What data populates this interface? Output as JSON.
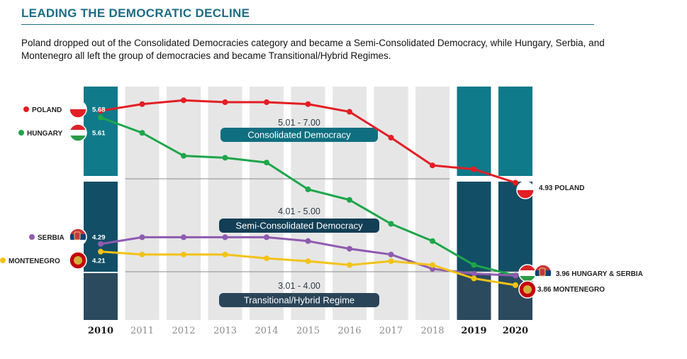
{
  "header": {
    "title": "LEADING THE DEMOCRATIC DECLINE",
    "subtitle": "Poland dropped out of the Consolidated Democracies category and became a Semi-Consolidated Democracy, while Hungary, Serbia, and Montenegro all left the group of democracies and became Transitional/Hybrid Regimes."
  },
  "colors": {
    "title": "#1b6c87",
    "consolidated": "#0f7a8a",
    "semi": "#124e66",
    "hybrid": "#2b4a5e",
    "gray_band": "#e6e6e6",
    "poland": "#e31e24",
    "hungary": "#1da64a",
    "serbia": "#8f5bb0",
    "montenegro": "#f2c318"
  },
  "chart_data": {
    "type": "line",
    "x": [
      "2010",
      "2011",
      "2012",
      "2013",
      "2014",
      "2015",
      "2016",
      "2017",
      "2018",
      "2019",
      "2020"
    ],
    "bold_years": [
      "2010",
      "2019",
      "2020"
    ],
    "series": [
      {
        "name": "POLAND",
        "color": "#e31e24",
        "values": [
          5.68,
          5.75,
          5.79,
          5.77,
          5.77,
          5.75,
          5.67,
          5.4,
          5.11,
          5.07,
          4.93
        ],
        "start_label": "5.68",
        "end_label": "4.93 POLAND"
      },
      {
        "name": "HUNGARY",
        "color": "#1da64a",
        "values": [
          5.61,
          5.45,
          5.21,
          5.19,
          5.14,
          4.86,
          4.75,
          4.5,
          4.32,
          4.07,
          3.96
        ],
        "start_label": "5.61",
        "end_label": ""
      },
      {
        "name": "SERBIA",
        "color": "#8f5bb0",
        "values": [
          4.29,
          4.36,
          4.36,
          4.36,
          4.36,
          4.32,
          4.24,
          4.18,
          4.03,
          3.98,
          3.96
        ],
        "start_label": "4.29",
        "end_label": ""
      },
      {
        "name": "MONTENEGRO",
        "color": "#f2c318",
        "values": [
          4.21,
          4.18,
          4.18,
          4.18,
          4.14,
          4.11,
          4.07,
          4.11,
          4.07,
          3.93,
          3.86
        ],
        "start_label": "4.21",
        "end_label": "3.86 MONTENEGRO"
      }
    ],
    "shared_end_label": "3.96 HUNGARY & SERBIA",
    "bands": [
      {
        "range_label": "5.01 - 7.00",
        "name": "Consolidated Democracy"
      },
      {
        "range_label": "4.01 - 5.00",
        "name": "Semi-Consolidated Democracy"
      },
      {
        "range_label": "3.01 - 4.00",
        "name": "Transitional/Hybrid Regime"
      }
    ],
    "grid": false,
    "legend": "left"
  }
}
